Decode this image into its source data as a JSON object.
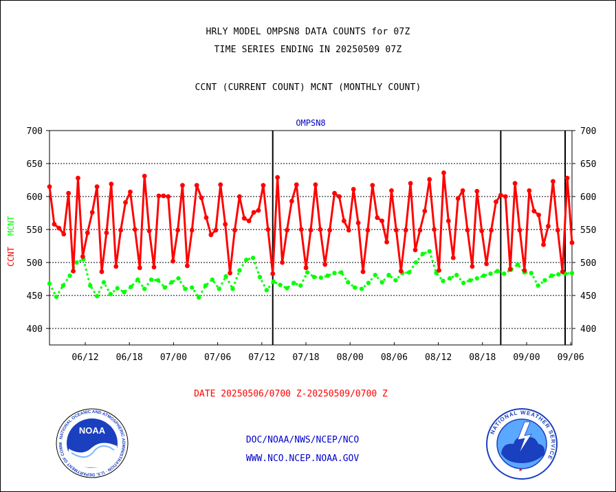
{
  "header": {
    "title_line1": "HRLY MODEL OMPSN8 DATA COUNTS for 07Z",
    "title_line2": "TIME SERIES ENDING IN 20250509 07Z",
    "subtitle": "CCNT (CURRENT COUNT) MCNT (MONTHLY COUNT)"
  },
  "chart_data": {
    "type": "line",
    "title": "OMPSN8",
    "ylabel_left_ccnt": "CCNT",
    "ylabel_left_mcnt": "MCNT",
    "ylim": [
      375,
      700
    ],
    "yticks": [
      400,
      450,
      500,
      550,
      600,
      650,
      700
    ],
    "grid": true,
    "x_tick_labels": [
      "06/12",
      "06/18",
      "07/00",
      "07/06",
      "07/12",
      "07/18",
      "08/00",
      "08/06",
      "08/12",
      "08/18",
      "09/00",
      "09/06"
    ],
    "day_separators_after_hour_index": [
      47,
      95,
      146
    ],
    "colors": {
      "ccnt": "#ff0000",
      "mcnt": "#00ff00",
      "title": "#0000cc",
      "axis": "#000000"
    },
    "series": [
      {
        "name": "CCNT",
        "values": [
          615,
          558,
          552,
          543,
          605,
          487,
          628,
          509,
          545,
          576,
          615,
          486,
          545,
          619,
          494,
          549,
          591,
          607,
          550,
          492,
          631,
          548,
          493,
          601,
          601,
          600,
          502,
          549,
          617,
          495,
          549,
          617,
          598,
          568,
          542,
          549,
          618,
          558,
          484,
          549,
          600,
          567,
          563,
          576,
          579,
          617,
          550,
          483,
          629,
          500,
          549,
          593,
          618,
          550,
          492,
          549,
          618,
          550,
          497,
          549,
          605,
          600,
          563,
          549,
          611,
          560,
          486,
          549,
          617,
          568,
          563,
          531,
          609,
          549,
          487,
          549,
          620,
          519,
          549,
          578,
          626,
          550,
          488,
          636,
          563,
          507,
          597,
          609,
          549,
          494,
          608,
          548,
          498,
          549,
          592,
          602,
          600,
          490,
          620,
          549,
          488,
          609,
          578,
          572,
          527,
          555,
          623,
          549,
          486,
          628,
          530
        ]
      },
      {
        "name": "MCNT",
        "values": [
          468,
          448,
          465,
          480,
          500,
          505,
          465,
          449,
          470,
          452,
          461,
          455,
          463,
          474,
          460,
          474,
          473,
          462,
          470,
          476,
          460,
          462,
          447,
          465,
          474,
          460,
          479,
          460,
          488,
          504,
          507,
          478,
          458,
          471,
          466,
          461,
          469,
          465,
          485,
          478,
          477,
          480,
          484,
          485,
          470,
          462,
          460,
          469,
          481,
          470,
          481,
          473,
          484,
          485,
          500,
          513,
          517,
          484,
          472,
          476,
          481,
          469,
          473,
          476,
          480,
          483,
          487,
          483,
          489,
          497,
          485,
          484,
          465,
          473,
          480,
          482,
          483,
          484
        ]
      }
    ],
    "xlabel": "DATE 20250506/0700 Z-20250509/0700 Z"
  },
  "footer": {
    "credit_line1": "DOC/NOAA/NWS/NCEP/NCO",
    "credit_line2": "WWW.NCO.NCEP.NOAA.GOV",
    "noaa_logo_text": "NOAA",
    "noaa_seal_text": "NATIONAL OCEANIC AND ATMOSPHERIC ADMINISTRATION · U.S. DEPARTMENT OF COMMERCE",
    "nws_seal_text": "NATIONAL WEATHER SERVICE"
  }
}
